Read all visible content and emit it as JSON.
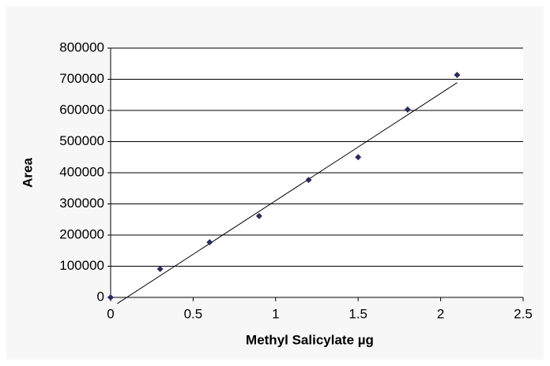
{
  "chart_data": {
    "type": "scatter",
    "x_label": "Methyl Salicylate µg",
    "y_label": "Area",
    "series": [
      {
        "x": [
          0,
          0.3,
          0.6,
          0.9,
          1.2,
          1.5,
          1.8,
          2.1
        ],
        "values": [
          0,
          91000,
          177000,
          261000,
          377000,
          450000,
          603000,
          714000
        ],
        "color": "#2b2b5e"
      }
    ],
    "trendline": {
      "x": [
        0.04,
        2.1
      ],
      "values": [
        -20000,
        689000
      ],
      "color": "#000000"
    },
    "xlim": [
      0,
      2.5
    ],
    "xticks": [
      0,
      0.5,
      1,
      1.5,
      2,
      2.5
    ],
    "ylim": [
      0,
      800000
    ],
    "yticks": [
      0,
      100000,
      200000,
      300000,
      400000,
      500000,
      600000,
      700000,
      800000
    ],
    "grid": true
  }
}
